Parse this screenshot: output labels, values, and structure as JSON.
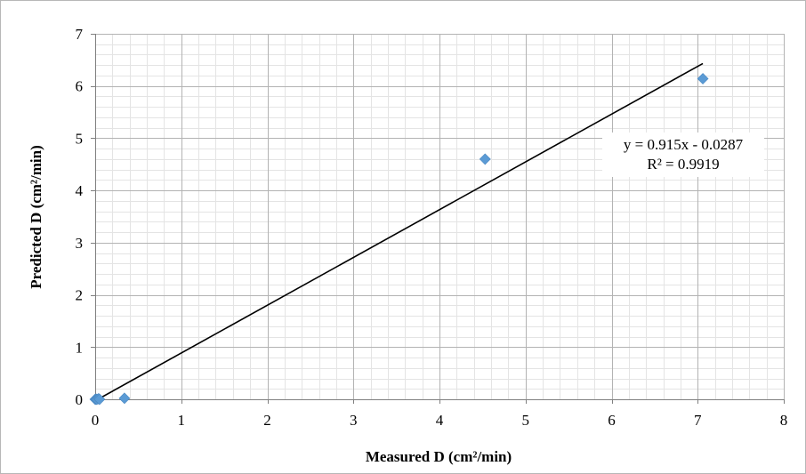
{
  "chart_data": {
    "type": "scatter",
    "xlabel": "Measured D (cm²/min)",
    "ylabel": "Predicted D (cm²/min)",
    "xlim": [
      0,
      8
    ],
    "ylim": [
      0,
      7
    ],
    "x_major_ticks": [
      0,
      1,
      2,
      3,
      4,
      5,
      6,
      7,
      8
    ],
    "y_major_ticks": [
      0,
      1,
      2,
      3,
      4,
      5,
      6,
      7
    ],
    "grid": {
      "major": true,
      "minor": true,
      "minor_step": 0.2
    },
    "legend": "none",
    "series": [
      {
        "marker": "diamond",
        "color": "#5b9bd5",
        "points": [
          {
            "x": 0.0,
            "y": 0.0
          },
          {
            "x": 0.01,
            "y": 0.0
          },
          {
            "x": 0.02,
            "y": 0.0
          },
          {
            "x": 0.04,
            "y": 0.01
          },
          {
            "x": 0.05,
            "y": 0.0
          },
          {
            "x": 0.34,
            "y": 0.02
          },
          {
            "x": 4.53,
            "y": 4.6
          },
          {
            "x": 7.06,
            "y": 6.14
          }
        ]
      }
    ],
    "trendline": {
      "type": "linear",
      "slope": 0.915,
      "intercept": -0.0287,
      "x_range": [
        0.0,
        7.06
      ],
      "color": "#000000",
      "equation_text": "y = 0.915x - 0.0287",
      "r2_text": "R² = 0.9919"
    }
  }
}
